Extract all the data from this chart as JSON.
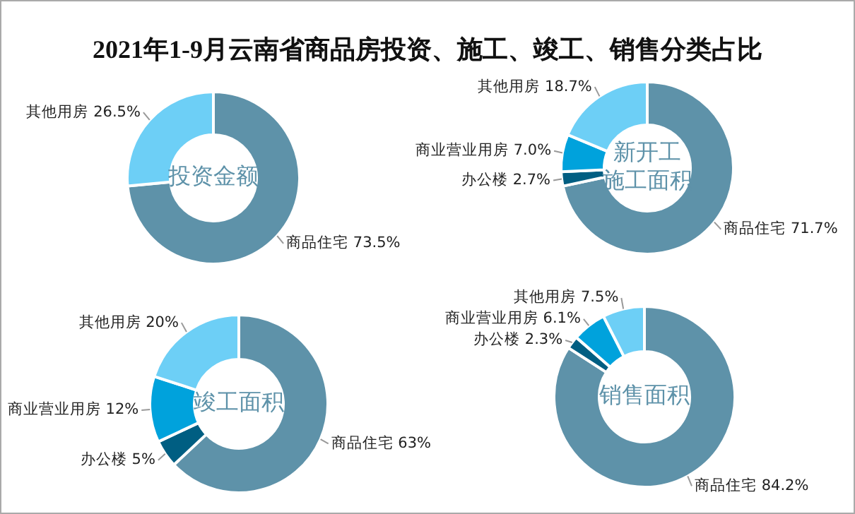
{
  "chart_data": [
    {
      "type": "donut",
      "title": "投资金额",
      "annotations": [
        "2021年1-9月云南省商品房投资、施工、竣工、销售分类占比"
      ],
      "categories": [
        "商品住宅",
        "其他用房"
      ],
      "values": [
        73.5,
        26.5
      ],
      "value_labels": [
        "73.5%",
        "26.5%"
      ],
      "colors": [
        "#5e92a9",
        "#6dcff6"
      ],
      "legend": false
    },
    {
      "type": "donut",
      "title": "新开工施工面积",
      "categories": [
        "商品住宅",
        "办公楼",
        "商业营业用房",
        "其他用房"
      ],
      "values": [
        71.7,
        2.7,
        7.0,
        18.7
      ],
      "value_labels": [
        "71.7%",
        "2.7%",
        "7.0%",
        "18.7%"
      ],
      "colors": [
        "#5e92a9",
        "#005e82",
        "#00a2dc",
        "#6dcff6"
      ],
      "legend": false
    },
    {
      "type": "donut",
      "title": "竣工面积",
      "categories": [
        "商品住宅",
        "办公楼",
        "商业营业用房",
        "其他用房"
      ],
      "values": [
        63,
        5,
        12,
        20
      ],
      "value_labels": [
        "63%",
        "5%",
        "12%",
        "20%"
      ],
      "colors": [
        "#5e92a9",
        "#005e82",
        "#00a2dc",
        "#6dcff6"
      ],
      "legend": false
    },
    {
      "type": "donut",
      "title": "销售面积",
      "categories": [
        "商品住宅",
        "办公楼",
        "商业营业用房",
        "其他用房"
      ],
      "values": [
        84.2,
        2.3,
        6.1,
        7.5
      ],
      "value_labels": [
        "84.2%",
        "2.3%",
        "6.1%",
        "7.5%"
      ],
      "colors": [
        "#5e92a9",
        "#005e82",
        "#00a2dc",
        "#6dcff6"
      ],
      "legend": false
    }
  ]
}
